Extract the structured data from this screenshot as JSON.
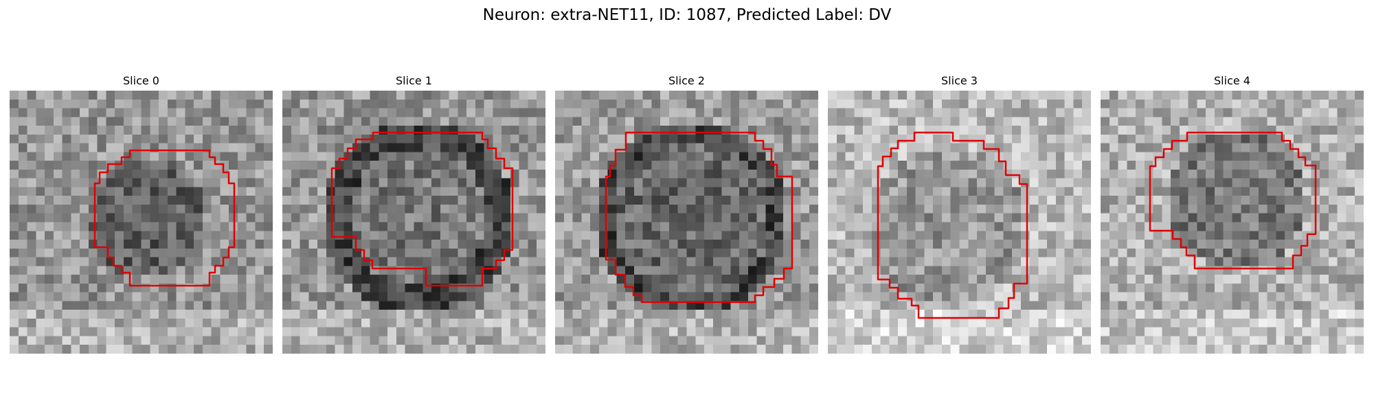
{
  "figure": {
    "title": "Neuron: extra-NET11, ID: 1087, Predicted Label: DV"
  },
  "colors": {
    "contour": "#e00000",
    "background": "#ffffff"
  },
  "panels": [
    {
      "title": "Slice 0"
    },
    {
      "title": "Slice 1"
    },
    {
      "title": "Slice 2"
    },
    {
      "title": "Slice 3"
    },
    {
      "title": "Slice 4"
    }
  ]
}
